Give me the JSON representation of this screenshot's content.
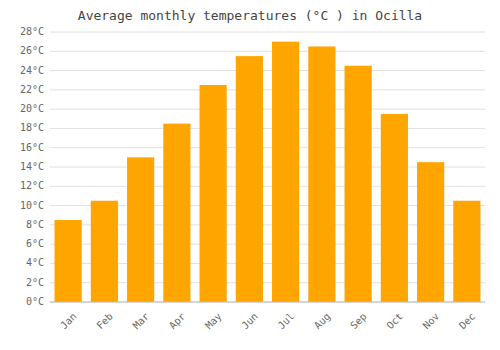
{
  "chart_data": {
    "type": "bar",
    "title": "Average monthly temperatures (°C ) in Ocilla",
    "categories": [
      "Jan",
      "Feb",
      "Mar",
      "Apr",
      "May",
      "Jun",
      "Jul",
      "Aug",
      "Sep",
      "Oct",
      "Nov",
      "Dec"
    ],
    "values": [
      8.5,
      10.5,
      15.0,
      18.5,
      22.5,
      25.5,
      27.0,
      26.5,
      24.5,
      19.5,
      14.5,
      10.5
    ],
    "color": "#FFA500",
    "ylim": [
      0,
      28
    ],
    "yticks": [
      {
        "value": 0,
        "label": "0°C"
      },
      {
        "value": 2,
        "label": "2°C"
      },
      {
        "value": 4,
        "label": "4°C"
      },
      {
        "value": 6,
        "label": "6°C"
      },
      {
        "value": 8,
        "label": "8°C"
      },
      {
        "value": 10,
        "label": "10°C"
      },
      {
        "value": 12,
        "label": "12°C"
      },
      {
        "value": 14,
        "label": "14°C"
      },
      {
        "value": 16,
        "label": "16°C"
      },
      {
        "value": 18,
        "label": "18°C"
      },
      {
        "value": 20,
        "label": "20°C"
      },
      {
        "value": 22,
        "label": "22°C"
      },
      {
        "value": 24,
        "label": "24°C"
      },
      {
        "value": 26,
        "label": "26°C"
      },
      {
        "value": 28,
        "label": "28°C"
      }
    ],
    "grid": true
  }
}
